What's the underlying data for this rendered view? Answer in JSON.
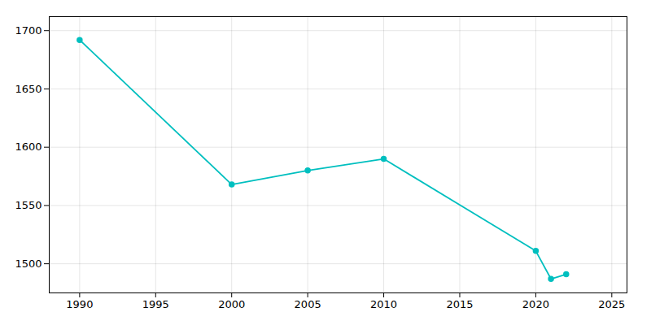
{
  "chart_data": {
    "type": "line",
    "x": [
      1990,
      2000,
      2005,
      2010,
      2020,
      2021,
      2022
    ],
    "values": [
      1692,
      1568,
      1580,
      1590,
      1511,
      1487,
      1491
    ],
    "color": "#00BFBF",
    "marker": "circle",
    "xlim": [
      1988,
      2026
    ],
    "ylim": [
      1475,
      1712
    ],
    "xticks": [
      1990,
      1995,
      2000,
      2005,
      2010,
      2015,
      2020,
      2025
    ],
    "yticks": [
      1500,
      1550,
      1600,
      1650,
      1700
    ],
    "grid": true
  }
}
